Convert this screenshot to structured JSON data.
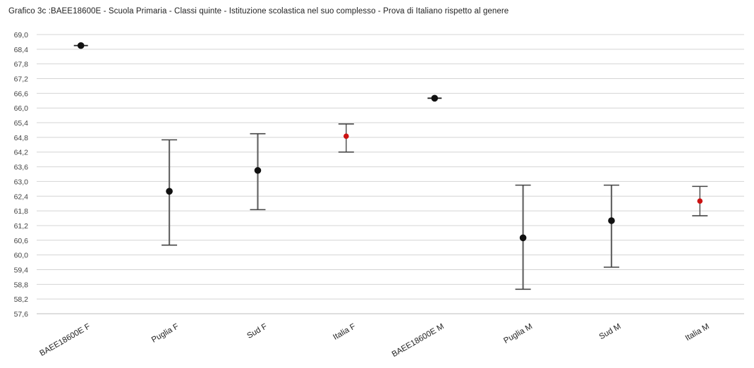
{
  "chart_data": {
    "type": "scatter",
    "title": "Grafico 3c :BAEE18600E - Scuola Primaria - Classi quinte - Istituzione scolastica nel suo complesso - Prova di Italiano rispetto al genere",
    "xlabel": "",
    "ylabel": "",
    "ylim": [
      57.6,
      69.0
    ],
    "y_step": 0.6,
    "y_ticks": [
      "57,6",
      "58,2",
      "58,8",
      "59,4",
      "60,0",
      "60,6",
      "61,2",
      "61,8",
      "62,4",
      "63,0",
      "63,6",
      "64,2",
      "64,8",
      "65,4",
      "66,0",
      "66,6",
      "67,2",
      "67,8",
      "68,4",
      "69,0"
    ],
    "grid": true,
    "legend": "none",
    "categories": [
      "BAEE18600E F",
      "Puglia F",
      "Sud F",
      "Italia F",
      "BAEE18600E M",
      "Puglia M",
      "Sud M",
      "Italia M"
    ],
    "points": [
      {
        "category": "BAEE18600E F",
        "value": 68.55,
        "low": 68.55,
        "high": 68.55,
        "color": "#111111"
      },
      {
        "category": "Puglia F",
        "value": 62.6,
        "low": 60.4,
        "high": 64.7,
        "color": "#111111"
      },
      {
        "category": "Sud F",
        "value": 63.45,
        "low": 61.85,
        "high": 64.95,
        "color": "#111111"
      },
      {
        "category": "Italia F",
        "value": 64.85,
        "low": 64.2,
        "high": 65.35,
        "color": "#cc1111"
      },
      {
        "category": "BAEE18600E M",
        "value": 66.4,
        "low": 66.4,
        "high": 66.4,
        "color": "#111111"
      },
      {
        "category": "Puglia M",
        "value": 60.7,
        "low": 58.6,
        "high": 62.85,
        "color": "#111111"
      },
      {
        "category": "Sud M",
        "value": 61.4,
        "low": 59.5,
        "high": 62.85,
        "color": "#111111"
      },
      {
        "category": "Italia M",
        "value": 62.2,
        "low": 61.6,
        "high": 62.8,
        "color": "#cc1111"
      }
    ]
  }
}
